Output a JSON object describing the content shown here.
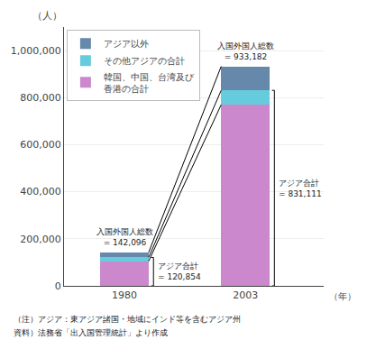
{
  "chart_data": {
    "type": "bar",
    "stacked": true,
    "categories": [
      "1980",
      "2003"
    ],
    "series": [
      {
        "name": "韓国、中国、台湾及び\n香港の合計",
        "color": "#CC88CC",
        "values": [
          105000,
          770000
        ]
      },
      {
        "name": "その他アジアの合計",
        "color": "#66CCDD",
        "values": [
          15854,
          61111
        ]
      },
      {
        "name": "アジア以外",
        "color": "#6688AA",
        "values": [
          21242,
          102071
        ]
      }
    ],
    "ylabel": "（人）",
    "xlabel": "（年）",
    "ylim": [
      0,
      1100000
    ],
    "yticks": [
      0,
      {
        "value": 200000,
        "label": "200,000"
      },
      {
        "value": 400000,
        "label": "400,000"
      },
      {
        "value": 600000,
        "label": "600,000"
      },
      {
        "value": 800000,
        "label": "800,000"
      },
      {
        "value": 1000000,
        "label": "1,000,000"
      }
    ],
    "grid": true,
    "legend": "upper left",
    "annotations": [
      {
        "text": "入国外国人総数\n= 142,096",
        "x": "1980",
        "y": 142096,
        "position": "top"
      },
      {
        "text": "アジア合計\n= 120,854",
        "x": "1980",
        "y": 120854,
        "position": "right"
      },
      {
        "text": "入国外国人総数\n= 933,182",
        "x": "2003",
        "y": 933182,
        "position": "top"
      },
      {
        "text": "アジア合計\n= 831,111",
        "x": "2003",
        "y": 831111,
        "position": "right"
      }
    ],
    "notes": [
      "（注）アジア：東アジア諸国・地域にインド等を含むアジア州",
      "資料）法務省「出入国管理統計」より作成"
    ]
  }
}
